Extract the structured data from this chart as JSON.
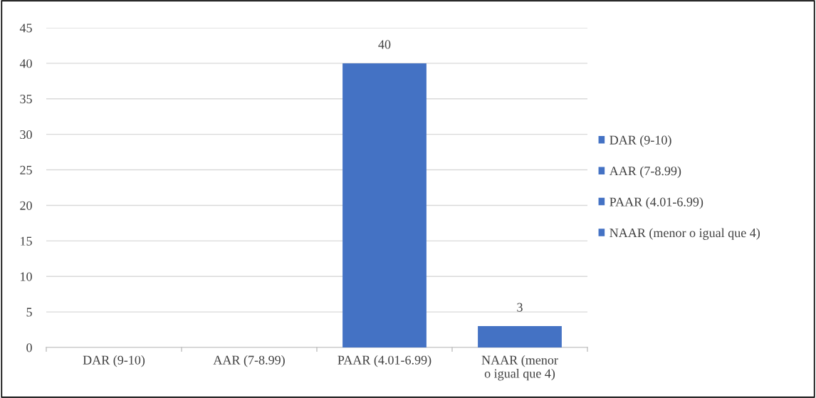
{
  "chart_data": {
    "type": "bar",
    "categories": [
      "DAR (9-10)",
      "AAR (7-8.99)",
      "PAAR (4.01-6.99)",
      "NAAR (menor o igual que 4)"
    ],
    "series": [
      {
        "name": "DAR (9-10)",
        "color": "#4472c4",
        "values": [
          0,
          null,
          null,
          null
        ]
      },
      {
        "name": "AAR (7-8.99)",
        "color": "#4472c4",
        "values": [
          null,
          0,
          null,
          null
        ]
      },
      {
        "name": "PAAR (4.01-6.99)",
        "color": "#4472c4",
        "values": [
          null,
          null,
          40,
          null
        ],
        "value_labels": [
          null,
          null,
          "40",
          null
        ]
      },
      {
        "name": "NAAR (menor o igual que 4)",
        "color": "#4472c4",
        "values": [
          null,
          null,
          null,
          3
        ],
        "value_labels": [
          null,
          null,
          null,
          "3"
        ]
      }
    ],
    "ylim": [
      0,
      45
    ],
    "yticks": [
      0,
      5,
      10,
      15,
      20,
      25,
      30,
      35,
      40,
      45
    ],
    "grid": "y",
    "legend": "right"
  }
}
